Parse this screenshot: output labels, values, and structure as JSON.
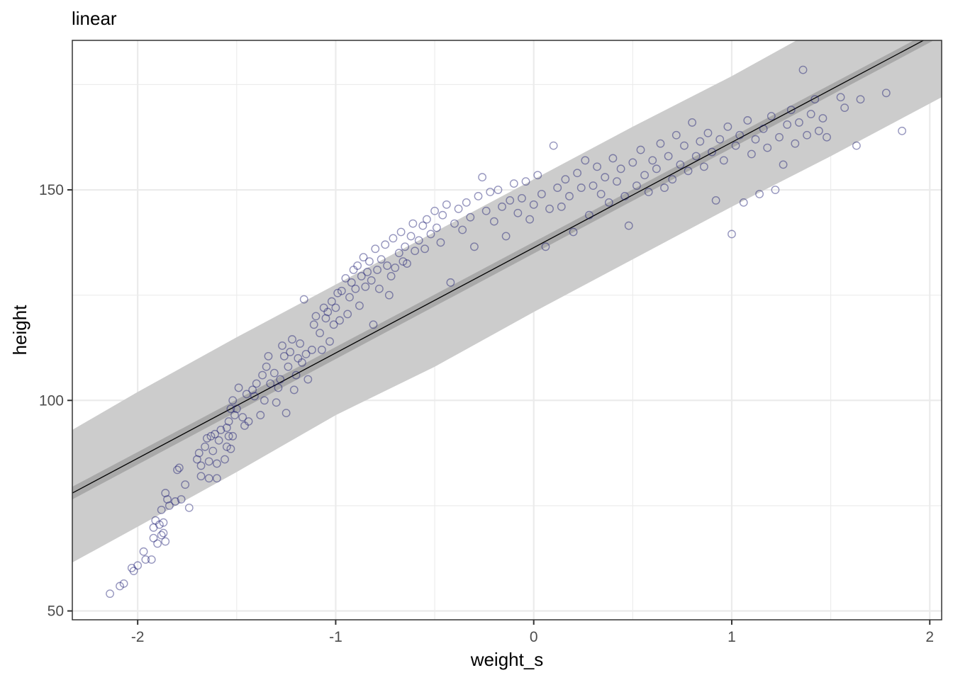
{
  "chart_data": {
    "type": "scatter",
    "title": "linear",
    "xlabel": "weight_s",
    "ylabel": "height",
    "xlim": [
      -2.33,
      2.06
    ],
    "ylim": [
      47.9,
      185.5
    ],
    "x_ticks": [
      -2,
      -1,
      0,
      1,
      2
    ],
    "x_tick_labels": [
      "-2",
      "-1",
      "0",
      "1",
      "2"
    ],
    "y_ticks": [
      50,
      100,
      150
    ],
    "y_tick_labels": [
      "50",
      "100",
      "150"
    ],
    "grid": true,
    "colors": {
      "points": "#191970",
      "fit_line": "#000000",
      "mean_interval": "#a9a9a9",
      "prediction_interval": "#cccccc",
      "grid": "#ebebeb",
      "border": "#333333"
    },
    "fit_line": {
      "x": [
        -2.33,
        2.06
      ],
      "y": [
        78.0,
        187.8
      ]
    },
    "mean_interval": {
      "x": [
        -2.33,
        2.06
      ],
      "lower": [
        76.5,
        186.5
      ],
      "upper": [
        79.5,
        189.0
      ]
    },
    "prediction_interval": {
      "x": [
        -2.33,
        -2.0,
        -1.5,
        -1.0,
        -0.5,
        0.0,
        0.5,
        1.0,
        1.5,
        2.06
      ],
      "lower": [
        61.5,
        70.0,
        83.0,
        96.5,
        108.0,
        121.0,
        133.5,
        146.0,
        158.0,
        172.0
      ],
      "upper": [
        93.0,
        102.0,
        115.0,
        127.5,
        140.0,
        152.5,
        165.0,
        177.0,
        190.0,
        204.0
      ]
    },
    "points": [
      [
        -2.14,
        54.1
      ],
      [
        -2.09,
        55.9
      ],
      [
        -2.07,
        56.5
      ],
      [
        -2.03,
        60.2
      ],
      [
        -2.02,
        59.5
      ],
      [
        -2.0,
        60.8
      ],
      [
        -1.97,
        64.1
      ],
      [
        -1.96,
        62.2
      ],
      [
        -1.93,
        62.2
      ],
      [
        -1.92,
        67.3
      ],
      [
        -1.92,
        69.8
      ],
      [
        -1.91,
        71.5
      ],
      [
        -1.9,
        66.0
      ],
      [
        -1.89,
        70.5
      ],
      [
        -1.88,
        68.0
      ],
      [
        -1.88,
        74.0
      ],
      [
        -1.87,
        68.5
      ],
      [
        -1.87,
        71.0
      ],
      [
        -1.86,
        66.5
      ],
      [
        -1.86,
        78.0
      ],
      [
        -1.85,
        76.5
      ],
      [
        -1.84,
        75.0
      ],
      [
        -1.81,
        76.0
      ],
      [
        -1.8,
        83.5
      ],
      [
        -1.79,
        84.0
      ],
      [
        -1.78,
        76.5
      ],
      [
        -1.76,
        80.0
      ],
      [
        -1.74,
        74.5
      ],
      [
        -1.7,
        86.0
      ],
      [
        -1.69,
        87.5
      ],
      [
        -1.68,
        82.0
      ],
      [
        -1.68,
        84.5
      ],
      [
        -1.66,
        89.0
      ],
      [
        -1.65,
        91.0
      ],
      [
        -1.64,
        85.5
      ],
      [
        -1.64,
        81.5
      ],
      [
        -1.63,
        91.5
      ],
      [
        -1.62,
        88.0
      ],
      [
        -1.61,
        92.0
      ],
      [
        -1.6,
        85.0
      ],
      [
        -1.6,
        81.5
      ],
      [
        -1.59,
        90.5
      ],
      [
        -1.58,
        93.0
      ],
      [
        -1.56,
        86.0
      ],
      [
        -1.55,
        89.0
      ],
      [
        -1.55,
        93.5
      ],
      [
        -1.54,
        91.5
      ],
      [
        -1.54,
        95.0
      ],
      [
        -1.53,
        88.5
      ],
      [
        -1.53,
        98.0
      ],
      [
        -1.52,
        91.5
      ],
      [
        -1.52,
        100.0
      ],
      [
        -1.51,
        96.5
      ],
      [
        -1.5,
        98.0
      ],
      [
        -1.49,
        103.0
      ],
      [
        -1.47,
        96.0
      ],
      [
        -1.46,
        94.0
      ],
      [
        -1.45,
        101.5
      ],
      [
        -1.44,
        95.0
      ],
      [
        -1.42,
        102.5
      ],
      [
        -1.41,
        101.0
      ],
      [
        -1.4,
        104.0
      ],
      [
        -1.38,
        96.5
      ],
      [
        -1.37,
        106.0
      ],
      [
        -1.36,
        100.0
      ],
      [
        -1.35,
        108.0
      ],
      [
        -1.34,
        110.5
      ],
      [
        -1.33,
        104.0
      ],
      [
        -1.31,
        106.5
      ],
      [
        -1.3,
        99.5
      ],
      [
        -1.29,
        103.0
      ],
      [
        -1.28,
        105.0
      ],
      [
        -1.27,
        113.0
      ],
      [
        -1.26,
        110.5
      ],
      [
        -1.25,
        97.0
      ],
      [
        -1.24,
        108.0
      ],
      [
        -1.23,
        111.5
      ],
      [
        -1.22,
        114.5
      ],
      [
        -1.21,
        102.5
      ],
      [
        -1.2,
        106.0
      ],
      [
        -1.19,
        110.0
      ],
      [
        -1.18,
        113.5
      ],
      [
        -1.17,
        109.0
      ],
      [
        -1.16,
        124.0
      ],
      [
        -1.15,
        111.0
      ],
      [
        -1.14,
        105.0
      ],
      [
        -1.12,
        112.0
      ],
      [
        -1.11,
        118.0
      ],
      [
        -1.1,
        120.0
      ],
      [
        -1.08,
        116.0
      ],
      [
        -1.07,
        112.0
      ],
      [
        -1.06,
        122.0
      ],
      [
        -1.05,
        119.5
      ],
      [
        -1.04,
        121.0
      ],
      [
        -1.03,
        114.0
      ],
      [
        -1.02,
        123.5
      ],
      [
        -1.01,
        118.0
      ],
      [
        -1.0,
        122.0
      ],
      [
        -0.99,
        125.5
      ],
      [
        -0.98,
        119.0
      ],
      [
        -0.97,
        126.0
      ],
      [
        -0.95,
        129.0
      ],
      [
        -0.94,
        120.5
      ],
      [
        -0.93,
        124.5
      ],
      [
        -0.92,
        128.0
      ],
      [
        -0.91,
        131.0
      ],
      [
        -0.9,
        126.5
      ],
      [
        -0.89,
        132.0
      ],
      [
        -0.88,
        122.5
      ],
      [
        -0.87,
        129.5
      ],
      [
        -0.86,
        134.0
      ],
      [
        -0.85,
        127.0
      ],
      [
        -0.84,
        130.5
      ],
      [
        -0.83,
        133.0
      ],
      [
        -0.82,
        128.5
      ],
      [
        -0.81,
        118.0
      ],
      [
        -0.8,
        136.0
      ],
      [
        -0.79,
        131.0
      ],
      [
        -0.78,
        126.5
      ],
      [
        -0.77,
        133.5
      ],
      [
        -0.75,
        137.0
      ],
      [
        -0.74,
        132.0
      ],
      [
        -0.73,
        125.0
      ],
      [
        -0.72,
        129.5
      ],
      [
        -0.71,
        138.5
      ],
      [
        -0.7,
        131.5
      ],
      [
        -0.68,
        135.0
      ],
      [
        -0.67,
        140.0
      ],
      [
        -0.66,
        133.0
      ],
      [
        -0.65,
        136.5
      ],
      [
        -0.64,
        132.5
      ],
      [
        -0.62,
        139.0
      ],
      [
        -0.61,
        142.0
      ],
      [
        -0.6,
        135.5
      ],
      [
        -0.58,
        138.0
      ],
      [
        -0.56,
        141.5
      ],
      [
        -0.55,
        136.0
      ],
      [
        -0.54,
        143.0
      ],
      [
        -0.52,
        139.5
      ],
      [
        -0.5,
        145.0
      ],
      [
        -0.49,
        141.0
      ],
      [
        -0.47,
        137.5
      ],
      [
        -0.46,
        144.0
      ],
      [
        -0.44,
        146.5
      ],
      [
        -0.42,
        128.0
      ],
      [
        -0.4,
        142.0
      ],
      [
        -0.38,
        145.5
      ],
      [
        -0.36,
        140.5
      ],
      [
        -0.34,
        147.0
      ],
      [
        -0.32,
        143.5
      ],
      [
        -0.3,
        136.5
      ],
      [
        -0.28,
        148.5
      ],
      [
        -0.26,
        153.0
      ],
      [
        -0.24,
        145.0
      ],
      [
        -0.22,
        149.5
      ],
      [
        -0.2,
        142.5
      ],
      [
        -0.18,
        150.0
      ],
      [
        -0.16,
        146.0
      ],
      [
        -0.14,
        139.0
      ],
      [
        -0.12,
        147.5
      ],
      [
        -0.1,
        151.5
      ],
      [
        -0.08,
        144.5
      ],
      [
        -0.06,
        148.0
      ],
      [
        -0.04,
        152.0
      ],
      [
        -0.02,
        143.0
      ],
      [
        0.0,
        146.5
      ],
      [
        0.02,
        153.5
      ],
      [
        0.04,
        149.0
      ],
      [
        0.06,
        136.5
      ],
      [
        0.08,
        145.5
      ],
      [
        0.1,
        160.5
      ],
      [
        0.12,
        150.5
      ],
      [
        0.14,
        146.0
      ],
      [
        0.16,
        152.5
      ],
      [
        0.18,
        148.5
      ],
      [
        0.2,
        140.0
      ],
      [
        0.22,
        154.0
      ],
      [
        0.24,
        150.5
      ],
      [
        0.26,
        157.0
      ],
      [
        0.28,
        144.0
      ],
      [
        0.3,
        151.0
      ],
      [
        0.32,
        155.5
      ],
      [
        0.34,
        149.0
      ],
      [
        0.36,
        153.0
      ],
      [
        0.38,
        147.0
      ],
      [
        0.4,
        157.5
      ],
      [
        0.42,
        152.0
      ],
      [
        0.44,
        155.0
      ],
      [
        0.46,
        148.5
      ],
      [
        0.48,
        141.5
      ],
      [
        0.5,
        156.5
      ],
      [
        0.52,
        151.0
      ],
      [
        0.54,
        159.5
      ],
      [
        0.56,
        153.5
      ],
      [
        0.58,
        149.5
      ],
      [
        0.6,
        157.0
      ],
      [
        0.62,
        155.0
      ],
      [
        0.64,
        161.0
      ],
      [
        0.66,
        150.5
      ],
      [
        0.68,
        158.0
      ],
      [
        0.7,
        152.5
      ],
      [
        0.72,
        163.0
      ],
      [
        0.74,
        156.0
      ],
      [
        0.76,
        160.5
      ],
      [
        0.78,
        154.5
      ],
      [
        0.8,
        166.0
      ],
      [
        0.82,
        158.0
      ],
      [
        0.84,
        161.5
      ],
      [
        0.86,
        155.5
      ],
      [
        0.88,
        163.5
      ],
      [
        0.9,
        159.0
      ],
      [
        0.92,
        147.5
      ],
      [
        0.94,
        162.0
      ],
      [
        0.96,
        157.0
      ],
      [
        0.98,
        165.0
      ],
      [
        1.0,
        139.5
      ],
      [
        1.02,
        160.5
      ],
      [
        1.04,
        163.0
      ],
      [
        1.06,
        147.0
      ],
      [
        1.08,
        166.5
      ],
      [
        1.1,
        158.5
      ],
      [
        1.12,
        162.0
      ],
      [
        1.14,
        149.0
      ],
      [
        1.16,
        164.5
      ],
      [
        1.18,
        160.0
      ],
      [
        1.2,
        167.5
      ],
      [
        1.22,
        150.0
      ],
      [
        1.24,
        162.5
      ],
      [
        1.26,
        156.0
      ],
      [
        1.28,
        165.5
      ],
      [
        1.3,
        169.0
      ],
      [
        1.32,
        161.0
      ],
      [
        1.34,
        166.0
      ],
      [
        1.36,
        178.5
      ],
      [
        1.38,
        163.0
      ],
      [
        1.4,
        168.0
      ],
      [
        1.42,
        171.5
      ],
      [
        1.44,
        164.0
      ],
      [
        1.46,
        167.0
      ],
      [
        1.48,
        162.5
      ],
      [
        1.55,
        172.0
      ],
      [
        1.57,
        169.5
      ],
      [
        1.63,
        160.5
      ],
      [
        1.65,
        171.5
      ],
      [
        1.78,
        173.0
      ],
      [
        1.86,
        164.0
      ]
    ]
  }
}
